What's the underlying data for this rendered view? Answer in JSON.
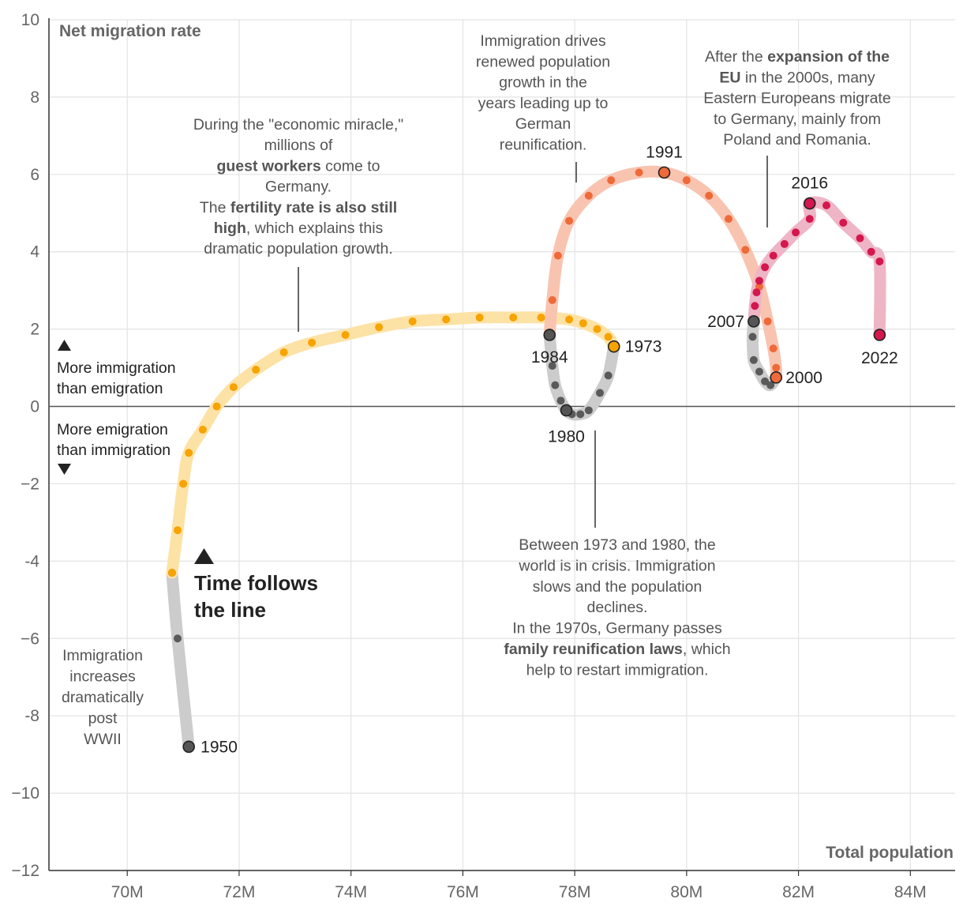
{
  "chart_data": {
    "type": "scatter",
    "connected": true,
    "xlabel": "Total population",
    "ylabel": "Net migration rate",
    "xlim": [
      68.6,
      84.8
    ],
    "ylim": [
      -12,
      10
    ],
    "x_ticks": [
      70,
      72,
      74,
      76,
      78,
      80,
      82,
      84
    ],
    "x_tick_labels": [
      "70M",
      "72M",
      "74M",
      "76M",
      "78M",
      "80M",
      "82M",
      "84M"
    ],
    "y_ticks": [
      10,
      8,
      6,
      4,
      2,
      0,
      -2,
      -4,
      -6,
      -8,
      -10,
      -12
    ],
    "y_tick_labels": [
      "10",
      "8",
      "6",
      "4",
      "2",
      "0",
      "−2",
      "-4",
      "−6",
      "-8",
      "−10",
      "−12"
    ],
    "grid": true,
    "series": [
      {
        "color": "#5a5a5a",
        "trail": "#cccccc",
        "points": [
          [
            71.1,
            -8.8
          ],
          [
            70.9,
            -6.0
          ],
          [
            70.8,
            -4.3
          ]
        ]
      },
      {
        "color": "#f7a300",
        "trail": "#fde2a6",
        "points": [
          [
            70.8,
            -4.3
          ],
          [
            70.9,
            -3.2
          ],
          [
            71.0,
            -2.0
          ],
          [
            71.1,
            -1.2
          ],
          [
            71.35,
            -0.6
          ],
          [
            71.6,
            0.0
          ],
          [
            71.9,
            0.5
          ],
          [
            72.3,
            0.95
          ],
          [
            72.8,
            1.4
          ],
          [
            73.3,
            1.65
          ],
          [
            73.9,
            1.85
          ],
          [
            74.5,
            2.05
          ],
          [
            75.1,
            2.2
          ],
          [
            75.7,
            2.25
          ],
          [
            76.3,
            2.3
          ],
          [
            76.9,
            2.3
          ],
          [
            77.4,
            2.3
          ],
          [
            77.9,
            2.25
          ],
          [
            78.15,
            2.15
          ],
          [
            78.4,
            2.0
          ],
          [
            78.6,
            1.8
          ],
          [
            78.7,
            1.55
          ]
        ]
      },
      {
        "color": "#5a5a5a",
        "trail": "#cccccc",
        "points": [
          [
            78.7,
            1.55
          ],
          [
            78.6,
            0.8
          ],
          [
            78.45,
            0.35
          ],
          [
            78.25,
            -0.1
          ],
          [
            78.1,
            -0.2
          ],
          [
            77.95,
            -0.2
          ],
          [
            77.85,
            -0.1
          ],
          [
            77.75,
            0.15
          ],
          [
            77.65,
            0.55
          ],
          [
            77.6,
            1.05
          ],
          [
            77.55,
            1.85
          ]
        ]
      },
      {
        "color": "#ef6a3a",
        "trail": "#f8c4b0",
        "points": [
          [
            77.55,
            1.85
          ],
          [
            77.6,
            2.75
          ],
          [
            77.7,
            3.9
          ],
          [
            77.9,
            4.8
          ],
          [
            78.25,
            5.45
          ],
          [
            78.65,
            5.85
          ],
          [
            79.15,
            6.05
          ],
          [
            79.6,
            6.05
          ],
          [
            80.0,
            5.85
          ],
          [
            80.4,
            5.45
          ],
          [
            80.75,
            4.85
          ],
          [
            81.05,
            4.05
          ],
          [
            81.3,
            3.1
          ],
          [
            81.45,
            2.2
          ],
          [
            81.55,
            1.5
          ],
          [
            81.6,
            1.0
          ],
          [
            81.6,
            0.75
          ]
        ]
      },
      {
        "color": "#5a5a5a",
        "trail": "#cccccc",
        "points": [
          [
            81.6,
            0.75
          ],
          [
            81.5,
            0.55
          ],
          [
            81.4,
            0.65
          ],
          [
            81.3,
            0.9
          ],
          [
            81.2,
            1.2
          ],
          [
            81.18,
            1.8
          ],
          [
            81.2,
            2.2
          ]
        ]
      },
      {
        "color": "#d4174d",
        "trail": "#eeb5c6",
        "points": [
          [
            81.2,
            2.2
          ],
          [
            81.22,
            2.6
          ],
          [
            81.25,
            2.95
          ],
          [
            81.3,
            3.25
          ],
          [
            81.4,
            3.6
          ],
          [
            81.55,
            3.9
          ],
          [
            81.75,
            4.2
          ],
          [
            81.95,
            4.5
          ],
          [
            82.2,
            4.85
          ],
          [
            82.2,
            5.25
          ],
          [
            82.5,
            5.2
          ],
          [
            82.8,
            4.75
          ],
          [
            83.1,
            4.35
          ],
          [
            83.3,
            4.0
          ],
          [
            83.45,
            3.75
          ],
          [
            83.45,
            1.85
          ]
        ]
      }
    ],
    "trail_breaks": [
      [
        78.7,
        1.55
      ],
      [
        77.55,
        1.85
      ],
      [
        81.6,
        0.75
      ],
      [
        81.2,
        2.2
      ]
    ],
    "highlights": [
      {
        "year": "1950",
        "x": 71.1,
        "y": -8.8,
        "fill": "#555555"
      },
      {
        "year": "1973",
        "x": 78.7,
        "y": 1.55,
        "fill": "#f7a300"
      },
      {
        "year": "1980",
        "x": 77.85,
        "y": -0.1,
        "fill": "#555555"
      },
      {
        "year": "1984",
        "x": 77.55,
        "y": 1.85,
        "fill": "#555555"
      },
      {
        "year": "1991",
        "x": 79.6,
        "y": 6.05,
        "fill": "#ef6a3a"
      },
      {
        "year": "2000",
        "x": 81.6,
        "y": 0.75,
        "fill": "#ef6a3a"
      },
      {
        "year": "2007",
        "x": 81.2,
        "y": 2.2,
        "fill": "#555555"
      },
      {
        "year": "2016",
        "x": 82.2,
        "y": 5.25,
        "fill": "#d4174d"
      },
      {
        "year": "2022",
        "x": 83.45,
        "y": 1.85,
        "fill": "#d4174d"
      }
    ],
    "legend": {
      "up_label": [
        "More immigration",
        "than emigration"
      ],
      "down_label": [
        "More emigration",
        "than immigration"
      ]
    },
    "time_label": [
      "Time follows",
      "the line"
    ],
    "annotations": [
      {
        "id": "annotation-post-wwii",
        "lines": [
          [
            "Immigration"
          ],
          [
            "increases"
          ],
          [
            "dramatically"
          ],
          [
            "post"
          ],
          [
            "WWII"
          ]
        ]
      },
      {
        "id": "annotation-economic-miracle",
        "lines": [
          [
            "During the \"economic miracle,\""
          ],
          [
            "millions of"
          ],
          [
            {
              "t": "guest workers",
              "b": true
            },
            " come to"
          ],
          [
            "Germany."
          ],
          [
            "The ",
            {
              "t": "fertility rate is also still",
              "b": true
            }
          ],
          [
            {
              "t": "high",
              "b": true
            },
            ", which explains this"
          ],
          [
            "dramatic population growth."
          ]
        ]
      },
      {
        "id": "annotation-reunification",
        "lines": [
          [
            "Immigration drives"
          ],
          [
            "renewed population"
          ],
          [
            "growth in the"
          ],
          [
            "years leading up to"
          ],
          [
            "German"
          ],
          [
            "reunification."
          ]
        ]
      },
      {
        "id": "annotation-eu-expansion",
        "lines": [
          [
            "After the ",
            {
              "t": "expansion of the",
              "b": true
            }
          ],
          [
            {
              "t": "EU",
              "b": true
            },
            " in the 2000s, many"
          ],
          [
            "Eastern Europeans migrate"
          ],
          [
            "to Germany, mainly from"
          ],
          [
            "Poland and Romania."
          ]
        ]
      },
      {
        "id": "annotation-crisis",
        "lines": [
          [
            "Between 1973 and 1980, the"
          ],
          [
            "world is in crisis. Immigration"
          ],
          [
            "slows and the population"
          ],
          [
            "declines."
          ],
          [
            "In the 1970s, Germany passes"
          ],
          [
            {
              "t": "family reunification laws",
              "b": true
            },
            ", which"
          ],
          [
            "help to restart immigration."
          ]
        ]
      }
    ]
  }
}
